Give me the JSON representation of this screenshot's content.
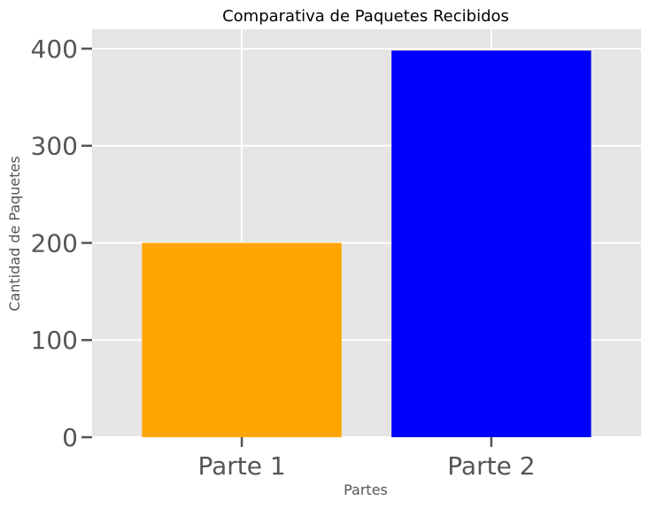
{
  "chart_data": {
    "type": "bar",
    "title": "Comparativa de Paquetes Recibidos",
    "xlabel": "Partes",
    "ylabel": "Cantidad de Paquetes",
    "categories": [
      "Parte 1",
      "Parte 2"
    ],
    "values": [
      200,
      398
    ],
    "bar_colors": [
      "#ffa500",
      "#0000ff"
    ],
    "ylim": [
      0,
      420
    ],
    "yticks": [
      0,
      100,
      200,
      300,
      400
    ],
    "ytick_labels": [
      "0",
      "100",
      "200",
      "300",
      "400"
    ],
    "grid": true,
    "background_color": "#e5e5e5",
    "grid_color": "#ffffff"
  }
}
